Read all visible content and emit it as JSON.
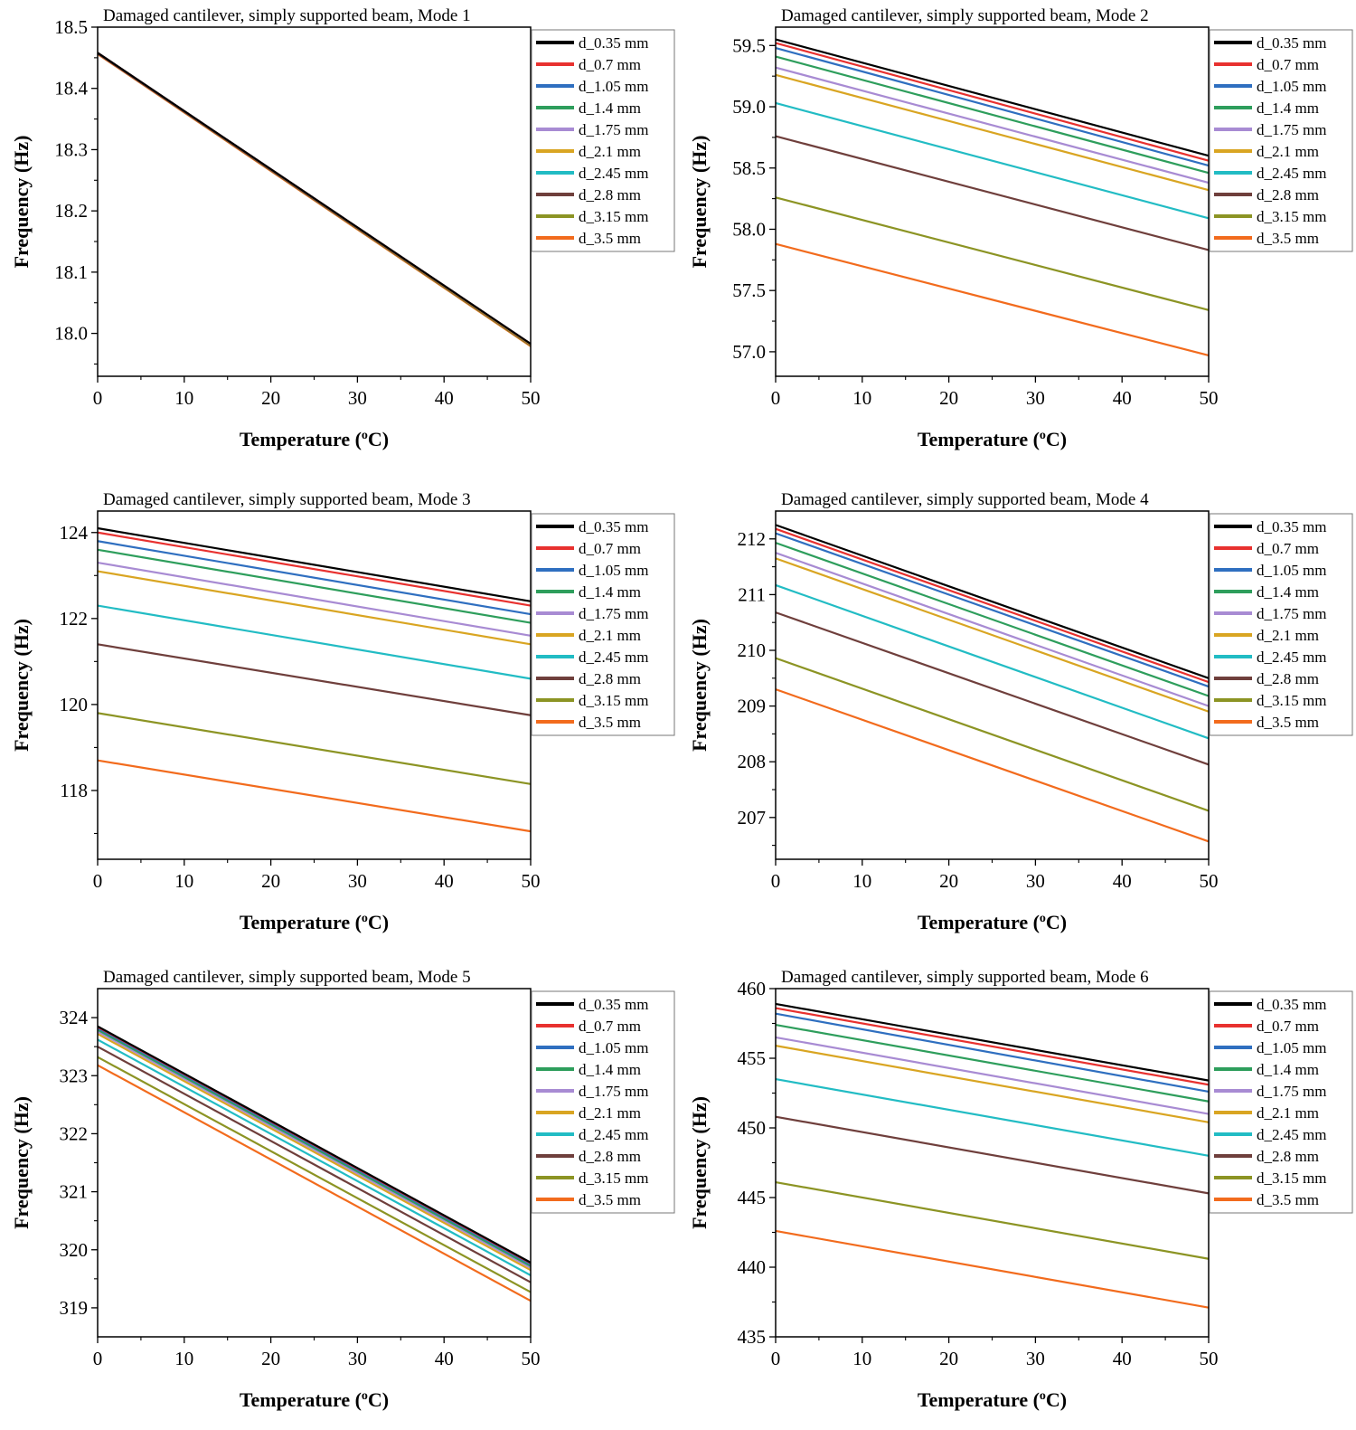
{
  "figure": {
    "legend_labels": [
      "d_0.35 mm",
      "d_0.7 mm",
      "d_1.05 mm",
      "d_1.4 mm",
      "d_1.75 mm",
      "d_2.1 mm",
      "d_2.45 mm",
      "d_2.8 mm",
      "d_3.15 mm",
      "d_3.5 mm"
    ],
    "series_colors": [
      "#000000",
      "#e8312f",
      "#2f6fc0",
      "#2e9e5c",
      "#a88bd3",
      "#d9a522",
      "#22bcc4",
      "#6f3f3c",
      "#8c9424",
      "#f26b1d"
    ]
  },
  "chart_data": [
    {
      "type": "line",
      "title": "Damaged cantilever, simply supported beam, Mode 1",
      "xlabel": "Temperature (oC)",
      "xlabel_main": "Temperature (",
      "xlabel_sup": "o",
      "xlabel_end": "C)",
      "ylabel": "Frequency (Hz)",
      "x": [
        0,
        50
      ],
      "xlim": [
        0,
        50
      ],
      "xticks": [
        "0",
        "10",
        "20",
        "30",
        "40",
        "50"
      ],
      "ylim": [
        17.93,
        18.5
      ],
      "yticks": [
        "18.0",
        "18.1",
        "18.2",
        "18.3",
        "18.4",
        "18.5"
      ],
      "legend_position": "top-right",
      "series": [
        {
          "name": "d_0.35 mm",
          "values": [
            18.458,
            17.983
          ]
        },
        {
          "name": "d_0.7 mm",
          "values": [
            18.458,
            17.983
          ]
        },
        {
          "name": "d_1.05 mm",
          "values": [
            18.458,
            17.983
          ]
        },
        {
          "name": "d_1.4 mm",
          "values": [
            18.458,
            17.983
          ]
        },
        {
          "name": "d_1.75 mm",
          "values": [
            18.458,
            17.983
          ]
        },
        {
          "name": "d_2.1 mm",
          "values": [
            18.458,
            17.982
          ]
        },
        {
          "name": "d_2.45 mm",
          "values": [
            18.458,
            17.983
          ]
        },
        {
          "name": "d_2.8 mm",
          "values": [
            18.457,
            17.981
          ]
        },
        {
          "name": "d_3.15 mm",
          "values": [
            18.457,
            17.98
          ]
        },
        {
          "name": "d_3.5 mm",
          "values": [
            18.456,
            17.979
          ]
        }
      ]
    },
    {
      "type": "line",
      "title": "Damaged cantilever, simply supported beam, Mode 2",
      "xlabel": "Temperature (oC)",
      "xlabel_main": "Temperature (",
      "xlabel_sup": "o",
      "xlabel_end": "C)",
      "ylabel": "Frequency (Hz)",
      "x": [
        0,
        50
      ],
      "xlim": [
        0,
        50
      ],
      "xticks": [
        "0",
        "10",
        "20",
        "30",
        "40",
        "50"
      ],
      "ylim": [
        56.8,
        59.65
      ],
      "yticks": [
        "57.0",
        "57.5",
        "58.0",
        "58.5",
        "59.0",
        "59.5"
      ],
      "legend_position": "top-right",
      "series": [
        {
          "name": "d_0.35 mm",
          "values": [
            59.55,
            58.6
          ]
        },
        {
          "name": "d_0.7 mm",
          "values": [
            59.52,
            58.56
          ]
        },
        {
          "name": "d_1.05 mm",
          "values": [
            59.48,
            58.52
          ]
        },
        {
          "name": "d_1.4 mm",
          "values": [
            59.41,
            58.46
          ]
        },
        {
          "name": "d_1.75 mm",
          "values": [
            59.32,
            58.38
          ]
        },
        {
          "name": "d_2.1 mm",
          "values": [
            59.26,
            58.32
          ]
        },
        {
          "name": "d_2.45 mm",
          "values": [
            59.03,
            58.09
          ]
        },
        {
          "name": "d_2.8 mm",
          "values": [
            58.76,
            57.83
          ]
        },
        {
          "name": "d_3.15 mm",
          "values": [
            58.26,
            57.34
          ]
        },
        {
          "name": "d_3.5 mm",
          "values": [
            57.88,
            56.97
          ]
        }
      ]
    },
    {
      "type": "line",
      "title": "Damaged cantilever, simply supported beam, Mode 3",
      "xlabel": "Temperature (oC)",
      "xlabel_main": "Temperature (",
      "xlabel_sup": "o",
      "xlabel_end": "C)",
      "ylabel": "Frequency (Hz)",
      "x": [
        0,
        50
      ],
      "xlim": [
        0,
        50
      ],
      "xticks": [
        "0",
        "10",
        "20",
        "30",
        "40",
        "50"
      ],
      "ylim": [
        116.4,
        124.5
      ],
      "yticks": [
        "118",
        "120",
        "122",
        "124"
      ],
      "legend_position": "top-right",
      "series": [
        {
          "name": "d_0.35 mm",
          "values": [
            124.1,
            122.4
          ]
        },
        {
          "name": "d_0.7 mm",
          "values": [
            124.0,
            122.3
          ]
        },
        {
          "name": "d_1.05 mm",
          "values": [
            123.8,
            122.1
          ]
        },
        {
          "name": "d_1.4 mm",
          "values": [
            123.6,
            121.9
          ]
        },
        {
          "name": "d_1.75 mm",
          "values": [
            123.3,
            121.6
          ]
        },
        {
          "name": "d_2.1 mm",
          "values": [
            123.1,
            121.4
          ]
        },
        {
          "name": "d_2.45 mm",
          "values": [
            122.3,
            120.6
          ]
        },
        {
          "name": "d_2.8 mm",
          "values": [
            121.4,
            119.75
          ]
        },
        {
          "name": "d_3.15 mm",
          "values": [
            119.8,
            118.15
          ]
        },
        {
          "name": "d_3.5 mm",
          "values": [
            118.7,
            117.05
          ]
        }
      ]
    },
    {
      "type": "line",
      "title": "Damaged cantilever, simply supported beam, Mode 4",
      "xlabel": "Temperature (oC)",
      "xlabel_main": "Temperature (",
      "xlabel_sup": "o",
      "xlabel_end": "C)",
      "ylabel": "Frequency (Hz)",
      "x": [
        0,
        50
      ],
      "xlim": [
        0,
        50
      ],
      "xticks": [
        "0",
        "10",
        "20",
        "30",
        "40",
        "50"
      ],
      "ylim": [
        206.25,
        212.5
      ],
      "yticks": [
        "207",
        "208",
        "209",
        "210",
        "211",
        "212"
      ],
      "legend_position": "top-right",
      "series": [
        {
          "name": "d_0.35 mm",
          "values": [
            212.25,
            209.5
          ]
        },
        {
          "name": "d_0.7 mm",
          "values": [
            212.18,
            209.43
          ]
        },
        {
          "name": "d_1.05 mm",
          "values": [
            212.1,
            209.35
          ]
        },
        {
          "name": "d_1.4 mm",
          "values": [
            211.93,
            209.18
          ]
        },
        {
          "name": "d_1.75 mm",
          "values": [
            211.75,
            209.0
          ]
        },
        {
          "name": "d_2.1 mm",
          "values": [
            211.65,
            208.9
          ]
        },
        {
          "name": "d_2.45 mm",
          "values": [
            211.17,
            208.42
          ]
        },
        {
          "name": "d_2.8 mm",
          "values": [
            210.68,
            207.95
          ]
        },
        {
          "name": "d_3.15 mm",
          "values": [
            209.86,
            207.12
          ]
        },
        {
          "name": "d_3.5 mm",
          "values": [
            209.3,
            206.57
          ]
        }
      ]
    },
    {
      "type": "line",
      "title": "Damaged cantilever, simply supported beam, Mode 5",
      "xlabel": "Temperature (oC)",
      "xlabel_main": "Temperature (",
      "xlabel_sup": "o",
      "xlabel_end": "C)",
      "ylabel": "Frequency (Hz)",
      "x": [
        0,
        50
      ],
      "xlim": [
        0,
        50
      ],
      "xticks": [
        "0",
        "10",
        "20",
        "30",
        "40",
        "50"
      ],
      "ylim": [
        318.5,
        324.5
      ],
      "yticks": [
        "319",
        "320",
        "321",
        "322",
        "323",
        "324"
      ],
      "legend_position": "top-right",
      "series": [
        {
          "name": "d_0.35 mm",
          "values": [
            323.85,
            319.78
          ]
        },
        {
          "name": "d_0.7 mm",
          "values": [
            323.84,
            319.77
          ]
        },
        {
          "name": "d_1.05 mm",
          "values": [
            323.82,
            319.75
          ]
        },
        {
          "name": "d_1.4 mm",
          "values": [
            323.79,
            319.72
          ]
        },
        {
          "name": "d_1.75 mm",
          "values": [
            323.76,
            319.69
          ]
        },
        {
          "name": "d_2.1 mm",
          "values": [
            323.72,
            319.65
          ]
        },
        {
          "name": "d_2.45 mm",
          "values": [
            323.62,
            319.56
          ]
        },
        {
          "name": "d_2.8 mm",
          "values": [
            323.5,
            319.44
          ]
        },
        {
          "name": "d_3.15 mm",
          "values": [
            323.32,
            319.27
          ]
        },
        {
          "name": "d_3.5 mm",
          "values": [
            323.18,
            319.12
          ]
        }
      ]
    },
    {
      "type": "line",
      "title": "Damaged cantilever, simply supported beam, Mode 6",
      "xlabel": "Temperature (oC)",
      "xlabel_main": "Temperature (",
      "xlabel_sup": "o",
      "xlabel_end": "C)",
      "ylabel": "Frequency (Hz)",
      "x": [
        0,
        50
      ],
      "xlim": [
        0,
        50
      ],
      "xticks": [
        "0",
        "10",
        "20",
        "30",
        "40",
        "50"
      ],
      "ylim": [
        435,
        460
      ],
      "yticks": [
        "435",
        "440",
        "445",
        "450",
        "455",
        "460"
      ],
      "legend_position": "top-right",
      "series": [
        {
          "name": "d_0.35 mm",
          "values": [
            458.9,
            453.4
          ]
        },
        {
          "name": "d_0.7 mm",
          "values": [
            458.6,
            453.1
          ]
        },
        {
          "name": "d_1.05 mm",
          "values": [
            458.2,
            452.6
          ]
        },
        {
          "name": "d_1.4 mm",
          "values": [
            457.4,
            451.9
          ]
        },
        {
          "name": "d_1.75 mm",
          "values": [
            456.5,
            451.0
          ]
        },
        {
          "name": "d_2.1 mm",
          "values": [
            455.9,
            450.4
          ]
        },
        {
          "name": "d_2.45 mm",
          "values": [
            453.5,
            448.0
          ]
        },
        {
          "name": "d_2.8 mm",
          "values": [
            450.8,
            445.3
          ]
        },
        {
          "name": "d_3.15 mm",
          "values": [
            446.1,
            440.6
          ]
        },
        {
          "name": "d_3.5 mm",
          "values": [
            442.6,
            437.1
          ]
        }
      ]
    }
  ]
}
